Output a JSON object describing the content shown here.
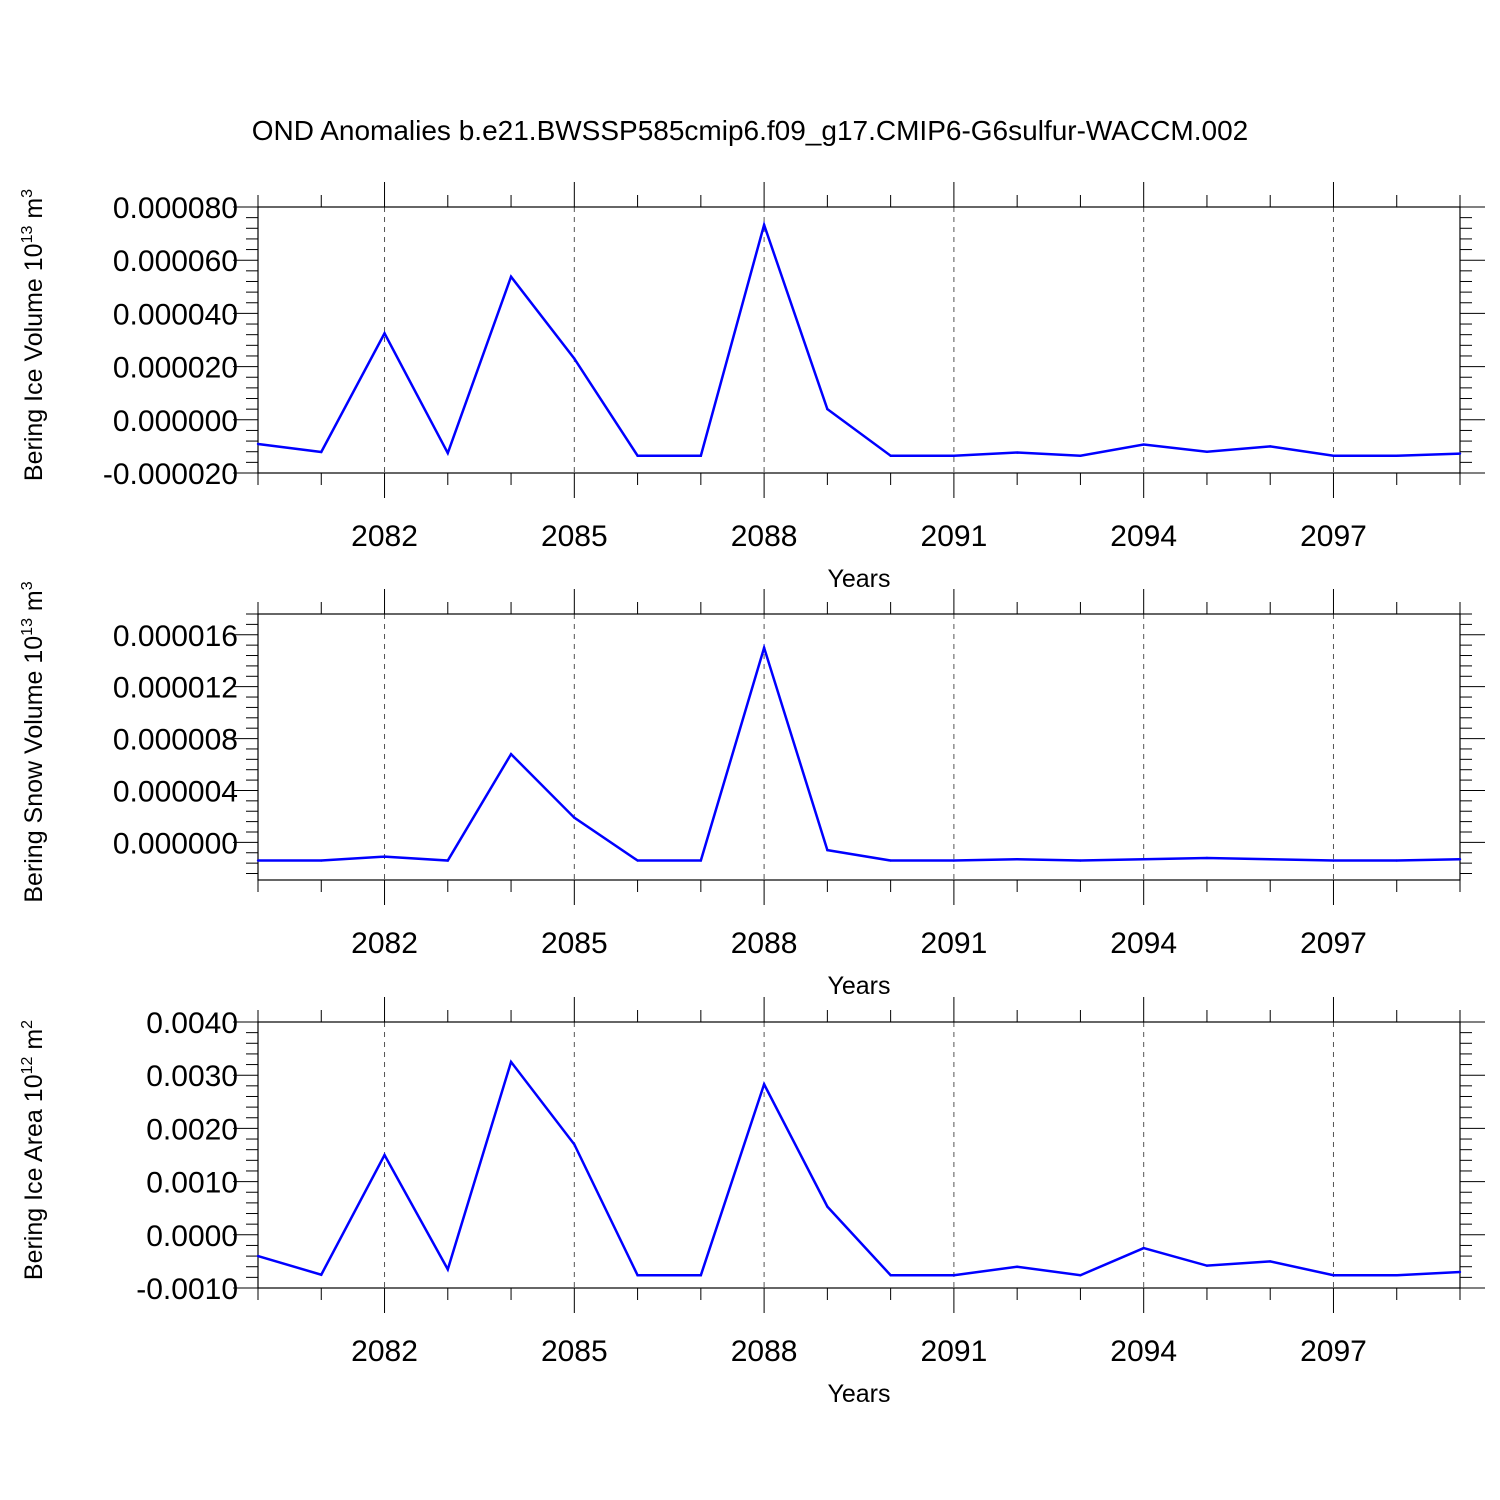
{
  "title": "OND Anomalies b.e21.BWSSP585cmip6.f09_g17.CMIP6-G6sulfur-WACCM.002",
  "colors": {
    "line": "#0000ff",
    "axis": "#000000",
    "grid": "#555555"
  },
  "chart_data": [
    {
      "type": "line",
      "ylabel": "Bering Ice Volume",
      "ylabel_unit_base": "10",
      "ylabel_unit_exp": "13",
      "ylabel_unit_main": " m",
      "ylabel_unit_sup": "3",
      "xlabel": "Years",
      "xlim": [
        2080,
        2099
      ],
      "ylim": [
        -2e-05,
        8e-05
      ],
      "x_ticks": [
        2082,
        2085,
        2088,
        2091,
        2094,
        2097
      ],
      "x_tick_labels": [
        "2082",
        "2085",
        "2088",
        "2091",
        "2094",
        "2097"
      ],
      "y_ticks": [
        -2e-05,
        0.0,
        2e-05,
        4e-05,
        6e-05,
        8e-05
      ],
      "y_tick_labels": [
        "-0.000020",
        "0.000000",
        "0.000020",
        "0.000040",
        "0.000060",
        "0.000080"
      ],
      "grid": "vertical dashed at major x ticks",
      "x": [
        2080,
        2081,
        2082,
        2083,
        2084,
        2085,
        2086,
        2087,
        2088,
        2089,
        2090,
        2091,
        2092,
        2093,
        2094,
        2095,
        2096,
        2097,
        2098,
        2099
      ],
      "values": [
        -9.1e-06,
        -1.21e-05,
        3.25e-05,
        -1.25e-05,
        5.38e-05,
        2.3e-05,
        -1.35e-05,
        -1.35e-05,
        7.33e-05,
        4e-06,
        -1.35e-05,
        -1.35e-05,
        -1.23e-05,
        -1.35e-05,
        -9.3e-06,
        -1.2e-05,
        -1e-05,
        -1.35e-05,
        -1.35e-05,
        -1.27e-05
      ]
    },
    {
      "type": "line",
      "ylabel": "Bering Snow Volume",
      "ylabel_unit_base": "10",
      "ylabel_unit_exp": "13",
      "ylabel_unit_main": " m",
      "ylabel_unit_sup": "3",
      "xlabel": "Years",
      "xlim": [
        2080,
        2099
      ],
      "ylim": [
        -2.9e-06,
        1.76e-05
      ],
      "x_ticks": [
        2082,
        2085,
        2088,
        2091,
        2094,
        2097
      ],
      "x_tick_labels": [
        "2082",
        "2085",
        "2088",
        "2091",
        "2094",
        "2097"
      ],
      "y_ticks": [
        0.0,
        4e-06,
        8e-06,
        1.2e-05,
        1.6e-05
      ],
      "y_tick_labels": [
        "0.000000",
        "0.000004",
        "0.000008",
        "0.000012",
        "0.000016"
      ],
      "grid": "vertical dashed at major x ticks",
      "x": [
        2080,
        2081,
        2082,
        2083,
        2084,
        2085,
        2086,
        2087,
        2088,
        2089,
        2090,
        2091,
        2092,
        2093,
        2094,
        2095,
        2096,
        2097,
        2098,
        2099
      ],
      "values": [
        -1.4e-06,
        -1.4e-06,
        -1.1e-06,
        -1.4e-06,
        6.8e-06,
        1.9e-06,
        -1.4e-06,
        -1.4e-06,
        1.5e-05,
        -6e-07,
        -1.4e-06,
        -1.4e-06,
        -1.3e-06,
        -1.4e-06,
        -1.3e-06,
        -1.2e-06,
        -1.3e-06,
        -1.4e-06,
        -1.4e-06,
        -1.3e-06
      ]
    },
    {
      "type": "line",
      "ylabel": "Bering Ice Area",
      "ylabel_unit_base": "10",
      "ylabel_unit_exp": "12",
      "ylabel_unit_main": " m",
      "ylabel_unit_sup": "2",
      "xlabel": "Years",
      "xlim": [
        2080,
        2099
      ],
      "ylim": [
        -0.001,
        0.004
      ],
      "x_ticks": [
        2082,
        2085,
        2088,
        2091,
        2094,
        2097
      ],
      "x_tick_labels": [
        "2082",
        "2085",
        "2088",
        "2091",
        "2094",
        "2097"
      ],
      "y_ticks": [
        -0.001,
        0.0,
        0.001,
        0.002,
        0.003,
        0.004
      ],
      "y_tick_labels": [
        "-0.0010",
        "0.0000",
        "0.0010",
        "0.0020",
        "0.0030",
        "0.0040"
      ],
      "grid": "vertical dashed at major x ticks",
      "x": [
        2080,
        2081,
        2082,
        2083,
        2084,
        2085,
        2086,
        2087,
        2088,
        2089,
        2090,
        2091,
        2092,
        2093,
        2094,
        2095,
        2096,
        2097,
        2098,
        2099
      ],
      "values": [
        -0.0004,
        -0.00075,
        0.0015,
        -0.00065,
        0.00325,
        0.0017,
        -0.00076,
        -0.00076,
        0.00283,
        0.00053,
        -0.00076,
        -0.00076,
        -0.0006,
        -0.00076,
        -0.00025,
        -0.00058,
        -0.0005,
        -0.00076,
        -0.00076,
        -0.0007
      ]
    }
  ]
}
